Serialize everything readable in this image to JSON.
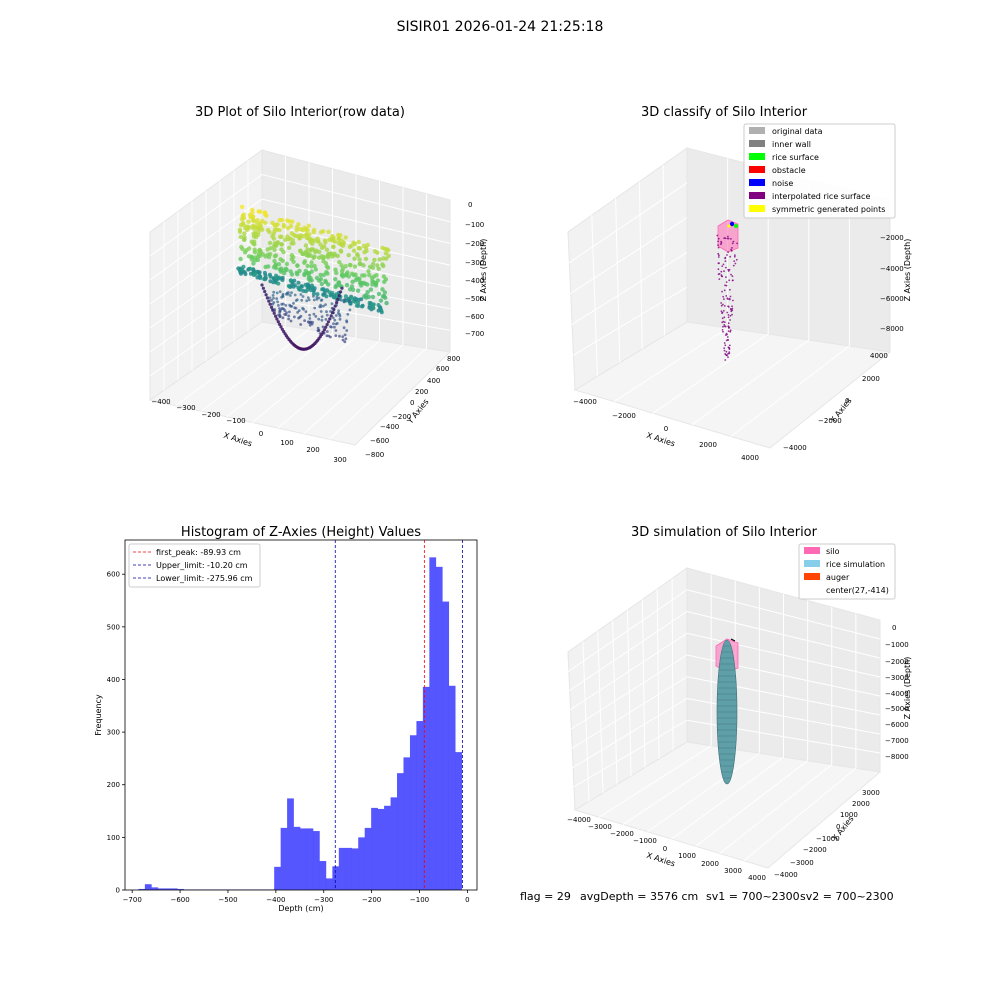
{
  "suptitle": "SISIR01 2026-01-24 21:25:18",
  "chart_data": [
    {
      "type": "scatter",
      "projection": "3d",
      "title": "3D Plot of Silo Interior(row data)",
      "xlabel": "X Axies",
      "ylabel": "Y Axies",
      "zlabel": "Z Axies (Depth)",
      "xticks": [
        "−400",
        "−300",
        "−200",
        "−100",
        "0",
        "100",
        "200",
        "300"
      ],
      "yticks": [
        "−800",
        "−600",
        "−400",
        "−200",
        "0",
        "200",
        "400",
        "600",
        "800"
      ],
      "zticks": [
        "0",
        "−100",
        "−200",
        "−300",
        "−400",
        "−500",
        "−600",
        "−700"
      ],
      "xlim": [
        -420,
        300
      ],
      "ylim": [
        -800,
        800
      ],
      "zlim": [
        -750,
        0
      ],
      "colormap": "viridis",
      "grid": true
    },
    {
      "type": "scatter",
      "projection": "3d",
      "title": "3D classify of Silo Interior",
      "xlabel": "X Axies",
      "ylabel": "Y Axies",
      "zlabel": "Z Axies (Depth)",
      "xticks": [
        "−4000",
        "−2000",
        "0",
        "2000",
        "4000"
      ],
      "yticks": [
        "−4000",
        "−2000",
        "0",
        "2000",
        "4000"
      ],
      "zticks": [
        "−2000",
        "−4000",
        "−6000",
        "−8000"
      ],
      "legend": [
        {
          "label": "original data",
          "color": "#b0b0b0"
        },
        {
          "label": "inner wall",
          "color": "#808080"
        },
        {
          "label": "rice surface",
          "color": "#00ff00"
        },
        {
          "label": "obstacle",
          "color": "#ff0000"
        },
        {
          "label": "noise",
          "color": "#0000ff"
        },
        {
          "label": "interpolated rice surface",
          "color": "#800080"
        },
        {
          "label": "symmetric generated points",
          "color": "#ffff00"
        }
      ],
      "legend_loc": "upper right",
      "grid": true
    },
    {
      "type": "bar",
      "title": "Histogram of Z-Axies (Height) Values",
      "xlabel": "Depth (cm)",
      "ylabel": "Frequency",
      "xlim": [
        -715,
        20
      ],
      "ylim": [
        0,
        665
      ],
      "xticks": [
        -700,
        -600,
        -500,
        -400,
        -300,
        -200,
        -100,
        0
      ],
      "xtick_labels": [
        "−700",
        "−600",
        "−500",
        "−400",
        "−300",
        "−200",
        "−100",
        "0"
      ],
      "yticks": [
        0,
        100,
        200,
        300,
        400,
        500,
        600
      ],
      "bar_color": "#4d4dff",
      "bin_width": 13.5,
      "bin_starts": [
        -687,
        -673.5,
        -660,
        -646.5,
        -633,
        -619.5,
        -606,
        -592.5,
        -579,
        -565.5,
        -552,
        -538.5,
        -525,
        -511.5,
        -498,
        -484.5,
        -471,
        -457.5,
        -444,
        -430.5,
        -417,
        -403.5,
        -390,
        -376.5,
        -363,
        -349.5,
        -336,
        -322.5,
        -309,
        -295.5,
        -282,
        -268.5,
        -255,
        -241.5,
        -228,
        -214.5,
        -201,
        -187.5,
        -174,
        -160.5,
        -147,
        -133.5,
        -120,
        -106.5,
        -93,
        -79.5,
        -66,
        -52.5,
        -39,
        -25.5
      ],
      "values": [
        2,
        11,
        5,
        3,
        3,
        3,
        2,
        1,
        1,
        1,
        1,
        1,
        1,
        1,
        1,
        1,
        1,
        1,
        1,
        1,
        1,
        44,
        118,
        174,
        120,
        117,
        117,
        112,
        55,
        22,
        45,
        80,
        80,
        79,
        100,
        118,
        156,
        154,
        160,
        176,
        222,
        252,
        294,
        321,
        386,
        632,
        614,
        548,
        388,
        262
      ],
      "lines": [
        {
          "label": "first_peak: -89.93 cm",
          "x": -89.93,
          "color": "#ff0000"
        },
        {
          "label": "Upper_limit: -10.20 cm",
          "x": -10.2,
          "color": "#0000aa"
        },
        {
          "label": "Lower_limit: -275.96 cm",
          "x": -275.96,
          "color": "#0000aa"
        }
      ],
      "legend_loc": "upper left"
    },
    {
      "type": "surface",
      "projection": "3d",
      "title": "3D simulation of Silo Interior",
      "xlabel": "X Axies",
      "ylabel": "Y Axies",
      "zlabel": "Z Axies (Depth)",
      "xticks": [
        "−4000",
        "−3000",
        "−2000",
        "−1000",
        "0",
        "1000",
        "2000",
        "3000",
        "4000"
      ],
      "yticks": [
        "−4000",
        "−3000",
        "−2000",
        "−1000",
        "0",
        "1000",
        "2000",
        "3000"
      ],
      "zticks": [
        "0",
        "−1000",
        "−2000",
        "−3000",
        "−4000",
        "−5000",
        "−6000",
        "−7000",
        "−8000"
      ],
      "legend": [
        {
          "label": "silo",
          "color": "#ff69b4"
        },
        {
          "label": "rice simulation",
          "color": "#87ceeb"
        },
        {
          "label": "auger",
          "color": "#ff4500"
        },
        {
          "label": "center(27,-414)",
          "color": ""
        }
      ],
      "legend_loc": "upper right",
      "grid": true
    }
  ],
  "footer": {
    "flag": "flag = 29",
    "avg_depth": "avgDepth = 3576 cm",
    "sv1": "sv1 = 700~2300",
    "sv2": "sv2 = 700~2300"
  }
}
